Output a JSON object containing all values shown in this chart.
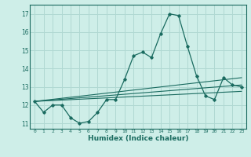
{
  "xlabel": "Humidex (Indice chaleur)",
  "bg_color": "#ceeee8",
  "grid_color": "#b0d8d2",
  "line_color": "#1a6b60",
  "xlim": [
    -0.5,
    23.5
  ],
  "ylim": [
    10.7,
    17.5
  ],
  "yticks": [
    11,
    12,
    13,
    14,
    15,
    16,
    17
  ],
  "xticks": [
    0,
    1,
    2,
    3,
    4,
    5,
    6,
    7,
    8,
    9,
    10,
    11,
    12,
    13,
    14,
    15,
    16,
    17,
    18,
    19,
    20,
    21,
    22,
    23
  ],
  "main_x": [
    0,
    1,
    2,
    3,
    4,
    5,
    6,
    7,
    8,
    9,
    10,
    11,
    12,
    13,
    14,
    15,
    16,
    17,
    18,
    19,
    20,
    21,
    22,
    23
  ],
  "main_y": [
    12.2,
    11.6,
    12.0,
    12.0,
    11.3,
    11.0,
    11.1,
    11.6,
    12.3,
    12.3,
    13.4,
    14.7,
    14.9,
    14.6,
    15.9,
    17.0,
    16.9,
    15.2,
    13.6,
    12.5,
    12.3,
    13.5,
    13.1,
    13.0
  ],
  "line1_x": [
    0,
    23
  ],
  "line1_y": [
    12.2,
    13.5
  ],
  "line2_x": [
    0,
    23
  ],
  "line2_y": [
    12.2,
    12.75
  ],
  "line3_x": [
    0,
    23
  ],
  "line3_y": [
    12.2,
    13.1
  ]
}
